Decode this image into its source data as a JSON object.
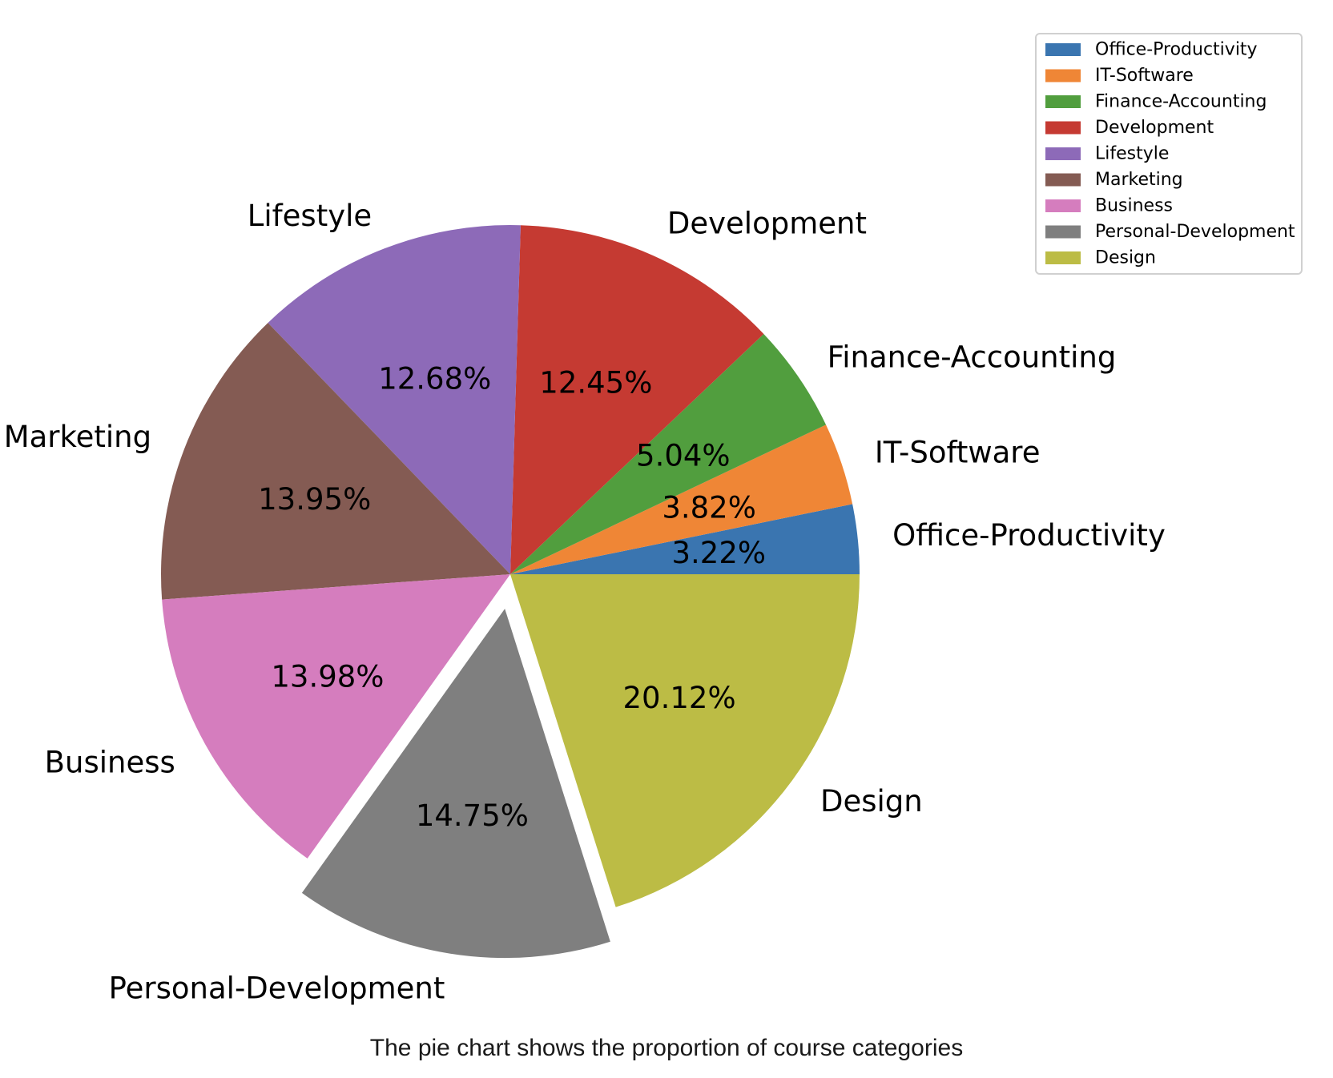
{
  "chart_data": {
    "type": "pie",
    "categories": [
      "Office-Productivity",
      "IT-Software",
      "Finance-Accounting",
      "Development",
      "Lifestyle",
      "Marketing",
      "Business",
      "Personal-Development",
      "Design"
    ],
    "values": [
      3.22,
      3.82,
      5.04,
      12.45,
      12.68,
      13.95,
      13.98,
      14.75,
      20.12
    ],
    "percent_labels": [
      "3.22%",
      "3.82%",
      "5.04%",
      "12.45%",
      "12.68%",
      "13.95%",
      "13.98%",
      "14.75%",
      "20.12%"
    ],
    "colors": [
      "#3a75b0",
      "#ef8636",
      "#519e3e",
      "#c53a32",
      "#8d6ab8",
      "#845b53",
      "#d57dbe",
      "#7f7f7f",
      "#bcbc45"
    ],
    "exploded": [
      "Personal-Development"
    ],
    "start_angle_deg": 0,
    "direction": "counterclockwise",
    "legend": {
      "position": "top-right",
      "entries": [
        "Office-Productivity",
        "IT-Software",
        "Finance-Accounting",
        "Development",
        "Lifestyle",
        "Marketing",
        "Business",
        "Personal-Development",
        "Design"
      ]
    },
    "title": ""
  },
  "caption": "The pie chart shows the proportion of course categories"
}
